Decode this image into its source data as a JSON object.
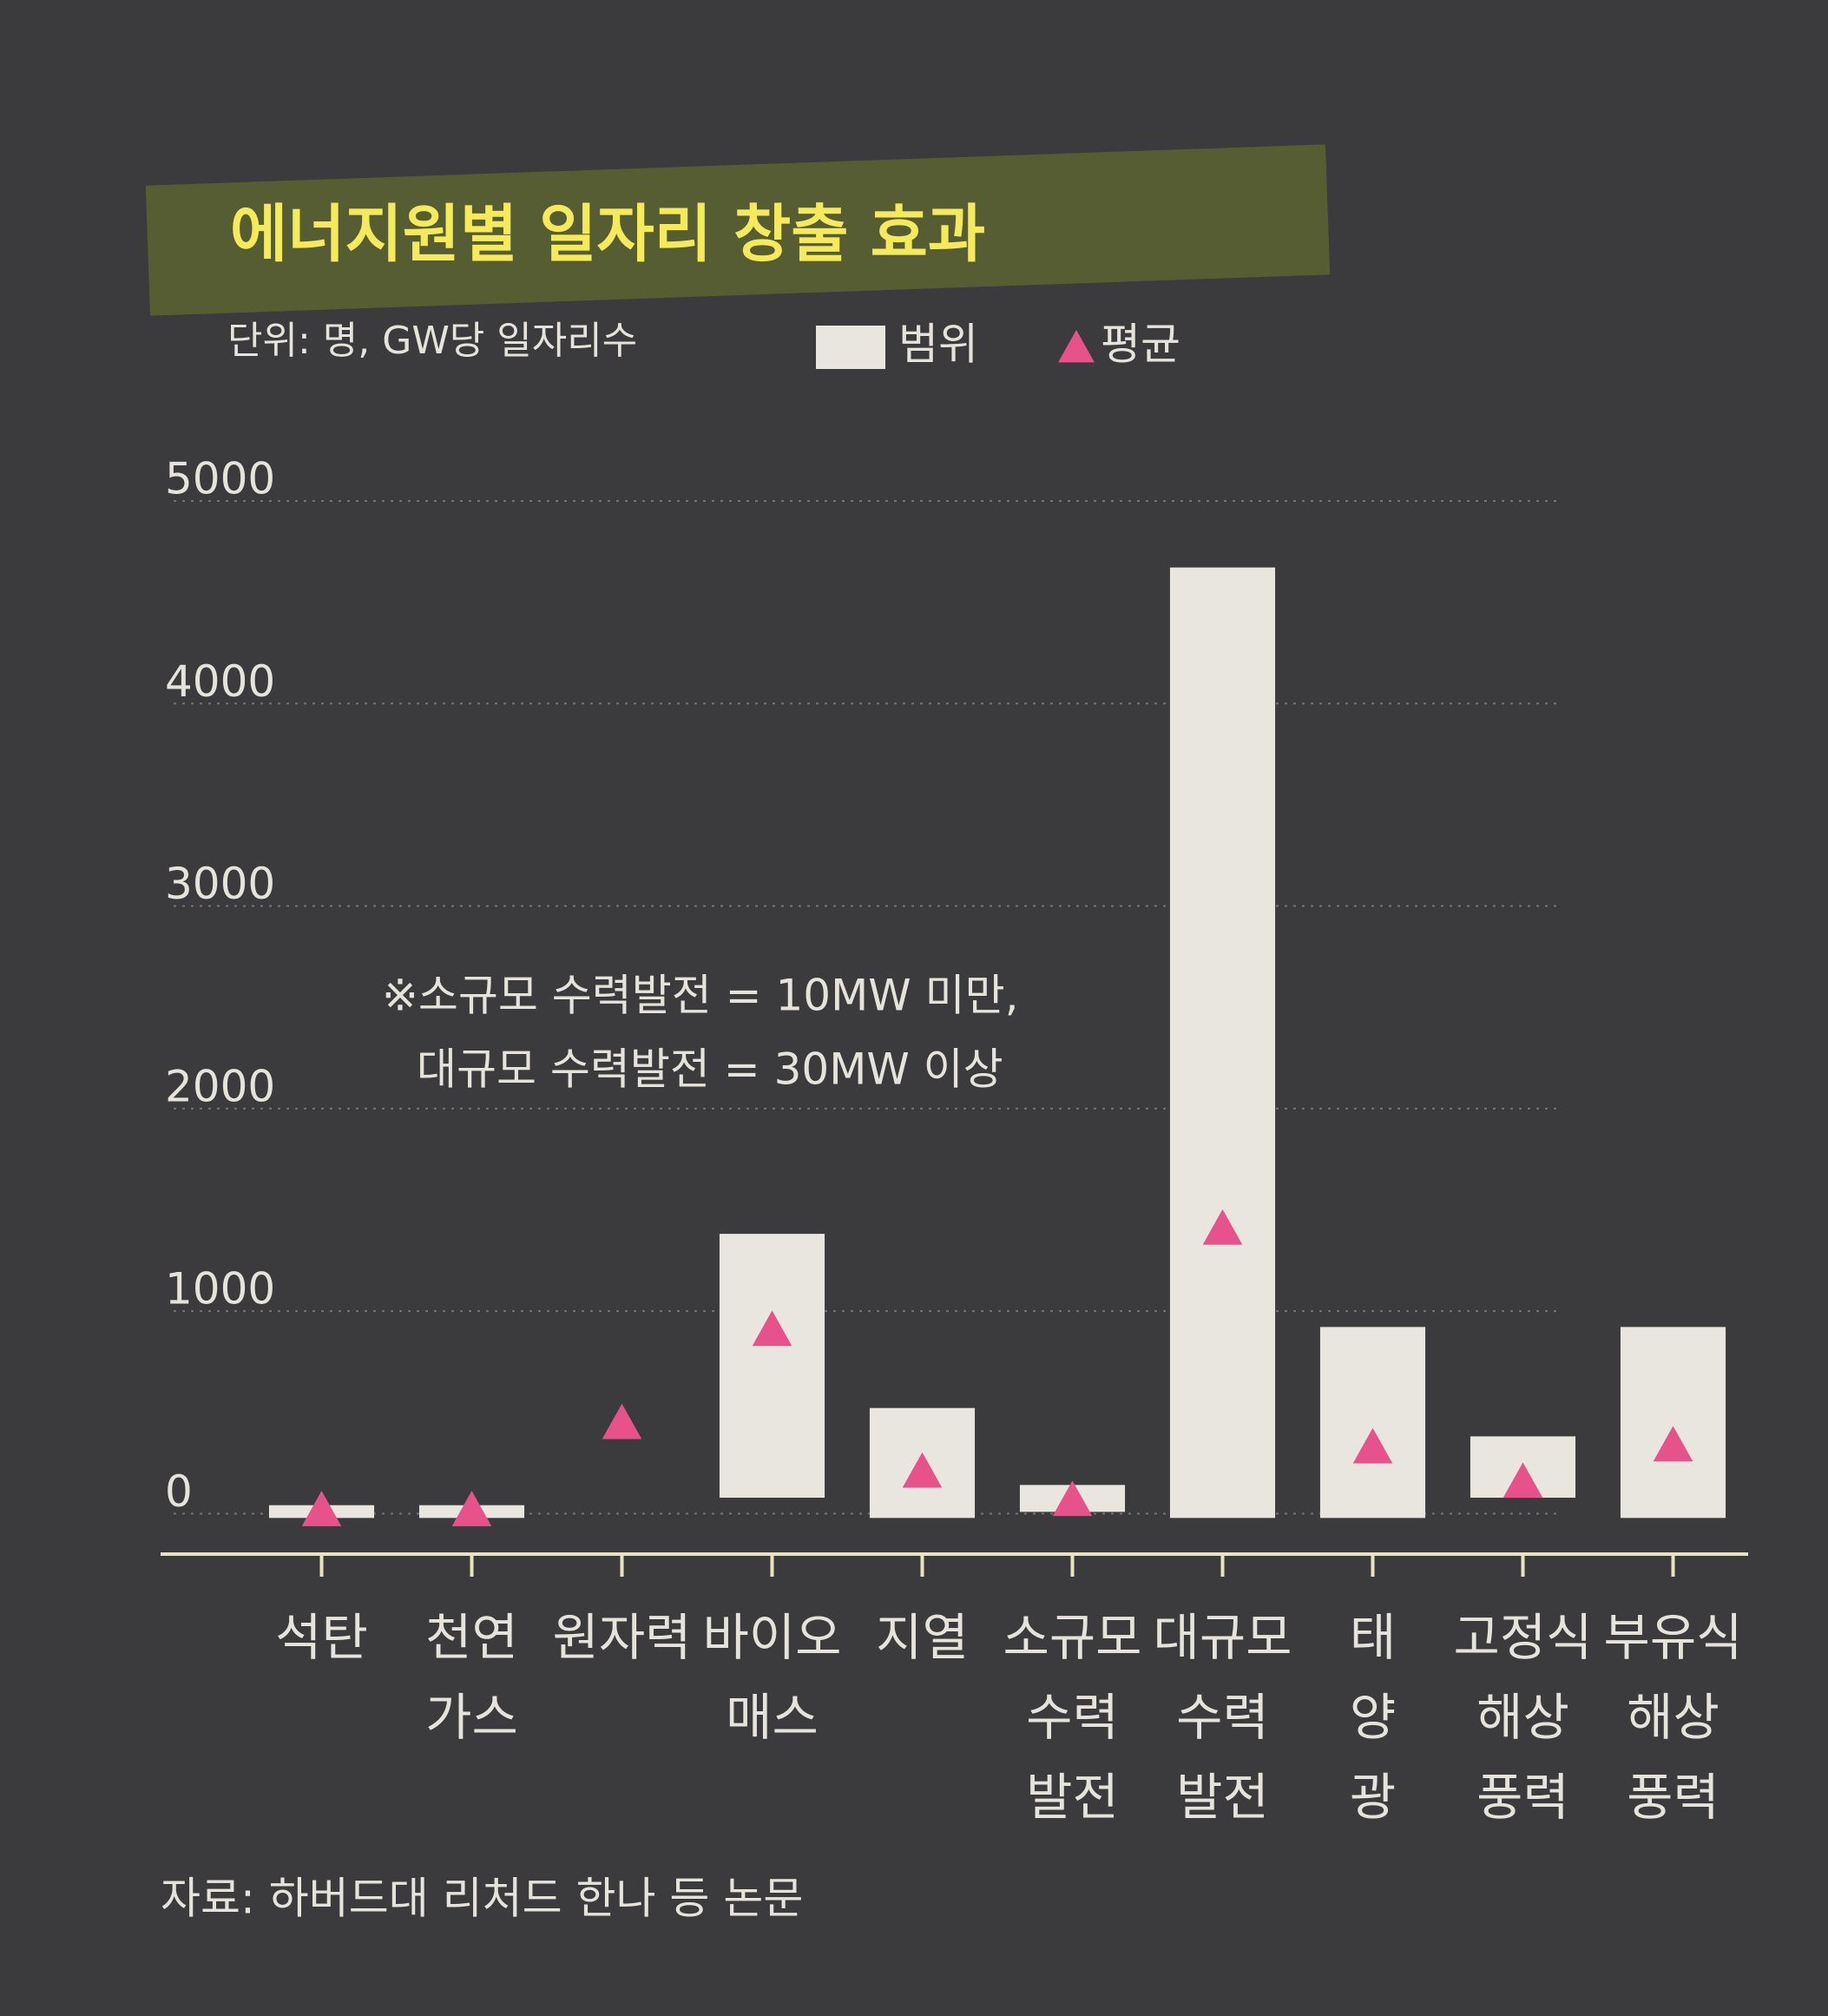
{
  "chart_data": {
    "type": "range-bar",
    "title": "에너지원별 일자리 창출 효과",
    "subtitle": "단위: 명, GW당 일자리수",
    "note": [
      "※소규모 수력발전 = 10MW 미만,",
      "대규모 수력발전 = 30MW 이상"
    ],
    "source": "자료: 하버드대 리처드 한나 등 논문",
    "categories": [
      [
        "석탄"
      ],
      [
        "천연",
        "가스"
      ],
      [
        "원자력"
      ],
      [
        "바이오",
        "매스"
      ],
      [
        "지열"
      ],
      [
        "소규모",
        "수력",
        "발전"
      ],
      [
        "대규모",
        "수력",
        "발전"
      ],
      [
        "태",
        "양",
        "광"
      ],
      [
        "고정식",
        "해상",
        "풍력"
      ],
      [
        "부유식",
        "해상",
        "풍력"
      ]
    ],
    "series": [
      {
        "name": "범위",
        "color": "#e9e6e0",
        "low": [
          0,
          0,
          null,
          100,
          0,
          30,
          0,
          0,
          100,
          0
        ],
        "high": [
          20,
          20,
          null,
          1360,
          500,
          120,
          4650,
          900,
          360,
          900
        ]
      },
      {
        "name": "평균",
        "color": "#e8528a",
        "values": [
          10,
          10,
          440,
          900,
          200,
          60,
          1400,
          320,
          150,
          330
        ]
      }
    ],
    "ylim": [
      -200,
      5300
    ],
    "yticks": [
      0,
      1000,
      2000,
      3000,
      4000,
      5000
    ],
    "grid": true
  }
}
